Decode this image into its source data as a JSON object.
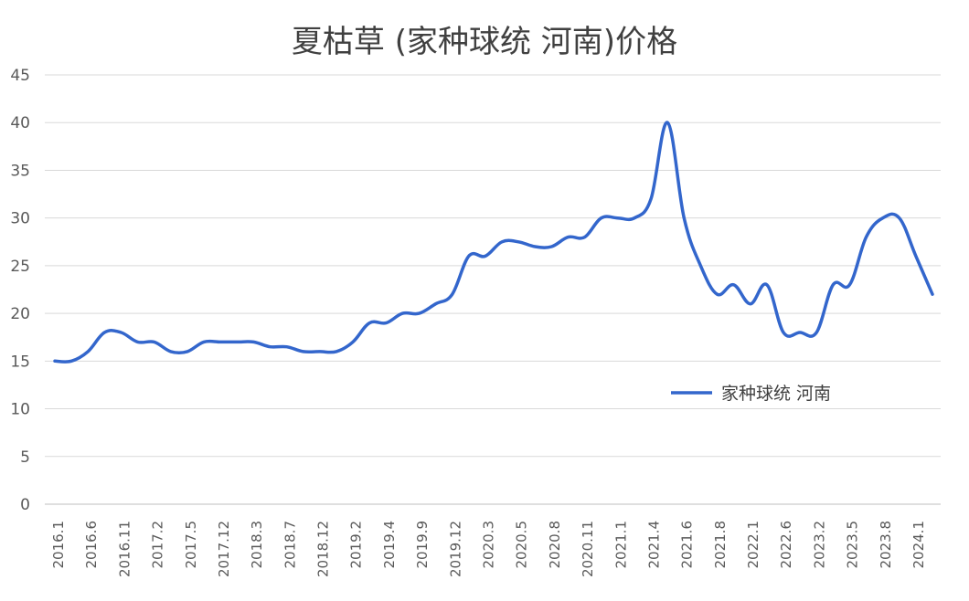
{
  "chart_data": {
    "type": "line",
    "title": "夏枯草 (家种球统 河南)价格",
    "xlabel": "",
    "ylabel": "",
    "ylim": [
      0,
      45
    ],
    "yticks": [
      "0",
      "5",
      "10",
      "15",
      "20",
      "25",
      "30",
      "35",
      "40",
      "45"
    ],
    "xtick_labels": [
      "2016.1",
      "2016.6",
      "2016.11",
      "2017.2",
      "2017.5",
      "2017.12",
      "2018.3",
      "2018.7",
      "2018.12",
      "2019.2",
      "2019.4",
      "2019.9",
      "2019.12",
      "2020.3",
      "2020.5",
      "2020.8",
      "2020.11",
      "2021.1",
      "2021.4",
      "2021.6",
      "2021.8",
      "2022.1",
      "2022.6",
      "2023.2",
      "2023.5",
      "2023.8",
      "2024.1"
    ],
    "grid": true,
    "legend_position": "right-middle",
    "line_color": "#3366CC",
    "series": [
      {
        "name": "家种球统 河南",
        "values": [
          15,
          15,
          16,
          18,
          18,
          17,
          17,
          16,
          16,
          17,
          17,
          17,
          17,
          16.5,
          16.5,
          16,
          16,
          16,
          17,
          19,
          19,
          20,
          20,
          21,
          22,
          26,
          26,
          27.5,
          27.5,
          27,
          27,
          28,
          28,
          30,
          30,
          30,
          32,
          40,
          30,
          25,
          22,
          23,
          21,
          23,
          18,
          18,
          18,
          23,
          23,
          28,
          30,
          30,
          26,
          22
        ]
      }
    ]
  }
}
